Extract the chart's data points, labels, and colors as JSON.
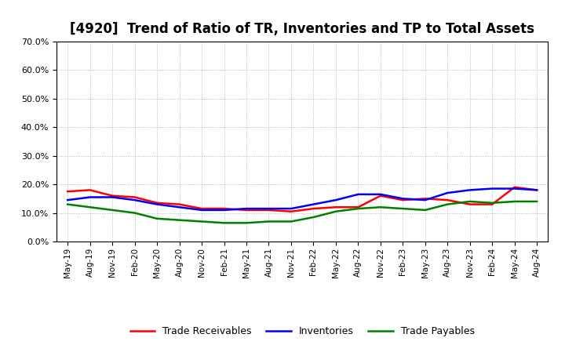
{
  "title": "[4920]  Trend of Ratio of TR, Inventories and TP to Total Assets",
  "x_labels": [
    "May-19",
    "Aug-19",
    "Nov-19",
    "Feb-20",
    "May-20",
    "Aug-20",
    "Nov-20",
    "Feb-21",
    "May-21",
    "Aug-21",
    "Nov-21",
    "Feb-22",
    "May-22",
    "Aug-22",
    "Nov-22",
    "Feb-23",
    "May-23",
    "Aug-23",
    "Nov-23",
    "Feb-24",
    "May-24",
    "Aug-24"
  ],
  "trade_receivables": [
    17.5,
    18.0,
    16.0,
    15.5,
    13.5,
    13.0,
    11.5,
    11.5,
    11.0,
    11.0,
    10.5,
    11.5,
    12.0,
    12.0,
    16.0,
    14.5,
    15.0,
    14.5,
    13.0,
    13.0,
    19.0,
    18.0
  ],
  "inventories": [
    14.5,
    15.5,
    15.5,
    14.5,
    13.0,
    12.0,
    11.0,
    11.0,
    11.5,
    11.5,
    11.5,
    13.0,
    14.5,
    16.5,
    16.5,
    15.0,
    14.5,
    17.0,
    18.0,
    18.5,
    18.5,
    18.0
  ],
  "trade_payables": [
    13.0,
    12.0,
    11.0,
    10.0,
    8.0,
    7.5,
    7.0,
    6.5,
    6.5,
    7.0,
    7.0,
    8.5,
    10.5,
    11.5,
    12.0,
    11.5,
    11.0,
    13.0,
    14.0,
    13.5,
    14.0,
    14.0
  ],
  "ylim": [
    0.0,
    70.0
  ],
  "yticks": [
    0.0,
    10.0,
    20.0,
    30.0,
    40.0,
    50.0,
    60.0,
    70.0
  ],
  "color_tr": "#ff0000",
  "color_inv": "#0000ff",
  "color_tp": "#008000",
  "bg_color": "#ffffff",
  "grid_color": "#aaaaaa",
  "legend_labels": [
    "Trade Receivables",
    "Inventories",
    "Trade Payables"
  ],
  "title_fontsize": 12,
  "line_width": 1.8
}
